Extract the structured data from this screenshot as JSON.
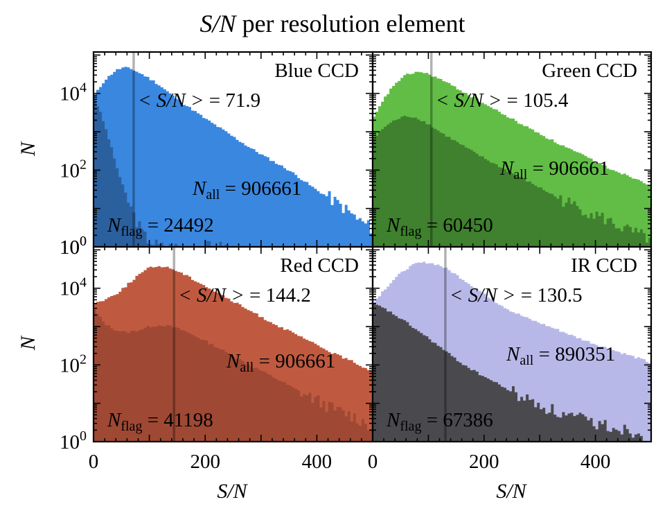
{
  "figure": {
    "title_italic": "S/N",
    "title_rest": " per resolution element",
    "ylabel": "N",
    "xlabel": "S/N"
  },
  "chart_data": {
    "type": "bar",
    "x_range": [
      0,
      500
    ],
    "y_scale": "log",
    "y_range": [
      1,
      120000
    ],
    "x_ticks": [
      "0",
      "200",
      "400"
    ],
    "y_ticks": [
      "10^0",
      "10^2",
      "10^4"
    ],
    "grid": false,
    "bin_width": 5,
    "panels": [
      {
        "name": "Blue CCD",
        "ccd_label": "Blue CCD",
        "color_all": "#3a87e0",
        "color_flag": "#2a5c99",
        "mean_label": "<S/N> = 71.9",
        "mean_value": 71.9,
        "nall_label": "N_all = 906661",
        "n_all": 906661,
        "nflag_label": "N_flag = 24492",
        "n_flag": 24492,
        "x_all": [
          0,
          20,
          40,
          55,
          70,
          90,
          110,
          130,
          150,
          175,
          200,
          225,
          250,
          275,
          300,
          325,
          350,
          375,
          400,
          425,
          450,
          475,
          500
        ],
        "y_all": [
          8000,
          22000,
          40000,
          48000,
          42000,
          30000,
          20000,
          12000,
          7000,
          4000,
          2200,
          1300,
          750,
          430,
          260,
          160,
          100,
          55,
          30,
          18,
          10,
          5,
          3
        ],
        "x_flag": [
          0,
          10,
          20,
          30,
          40,
          50,
          60,
          70,
          80,
          90,
          100,
          120,
          140,
          160,
          180,
          200,
          220,
          240
        ],
        "y_flag": [
          8000,
          4000,
          1500,
          500,
          150,
          50,
          20,
          8,
          4,
          2,
          1.5,
          1,
          1,
          1,
          1,
          1,
          1,
          1
        ]
      },
      {
        "name": "Green CCD",
        "ccd_label": "Green CCD",
        "color_all": "#62bd46",
        "color_flag": "#3c7c2d",
        "mean_label": "<S/N> = 105.4",
        "mean_value": 105.4,
        "nall_label": "N_all = 906661",
        "n_all": 906661,
        "nflag_label": "N_flag = 60450",
        "n_flag": 60450,
        "x_all": [
          0,
          20,
          40,
          60,
          80,
          100,
          120,
          150,
          180,
          210,
          240,
          270,
          300,
          330,
          360,
          390,
          420,
          450,
          480,
          500
        ],
        "y_all": [
          2000,
          7000,
          18000,
          30000,
          37000,
          32000,
          24000,
          14000,
          8000,
          4500,
          2600,
          1500,
          900,
          520,
          320,
          200,
          120,
          80,
          55,
          40
        ],
        "x_flag": [
          0,
          20,
          40,
          60,
          80,
          100,
          120,
          150,
          180,
          210,
          240,
          270,
          300,
          330,
          360,
          390,
          420,
          450,
          480,
          500
        ],
        "y_flag": [
          600,
          1300,
          2000,
          2600,
          2300,
          1600,
          1000,
          550,
          300,
          170,
          100,
          60,
          35,
          20,
          12,
          8,
          5,
          3,
          2,
          1.5
        ]
      },
      {
        "name": "Red CCD",
        "ccd_label": "Red CCD",
        "color_all": "#bf5a40",
        "color_flag": "#9c4633",
        "mean_label": "<S/N> = 144.2",
        "mean_value": 144.2,
        "nall_label": "N_all = 906661",
        "n_all": 906661,
        "nflag_label": "N_flag = 41198",
        "n_flag": 41198,
        "x_all": [
          0,
          20,
          40,
          60,
          80,
          100,
          120,
          140,
          160,
          190,
          220,
          250,
          280,
          310,
          340,
          370,
          400,
          430,
          460,
          490,
          500
        ],
        "y_all": [
          4000,
          5000,
          7000,
          12000,
          22000,
          34000,
          38000,
          33000,
          24000,
          14000,
          8000,
          4500,
          2600,
          1500,
          900,
          550,
          330,
          200,
          130,
          80,
          70
        ],
        "x_flag": [
          0,
          20,
          40,
          60,
          80,
          100,
          120,
          140,
          160,
          190,
          220,
          250,
          280,
          310,
          340,
          370,
          400,
          430,
          460,
          490,
          500
        ],
        "y_flag": [
          3000,
          1200,
          800,
          700,
          800,
          1000,
          1100,
          1000,
          800,
          500,
          300,
          170,
          100,
          60,
          35,
          20,
          12,
          7,
          5,
          3,
          2
        ]
      },
      {
        "name": "IR CCD",
        "ccd_label": "IR CCD",
        "color_all": "#b8b8e8",
        "color_flag": "#404040",
        "mean_label": "<S/N> = 130.5",
        "mean_value": 130.5,
        "nall_label": "N_all = 890351",
        "n_all": 890351,
        "nflag_label": "N_flag = 67386",
        "n_flag": 67386,
        "x_all": [
          0,
          20,
          40,
          60,
          80,
          100,
          120,
          140,
          160,
          190,
          220,
          250,
          280,
          310,
          340,
          370,
          400,
          430,
          460,
          490,
          500
        ],
        "y_all": [
          4000,
          9000,
          18000,
          32000,
          45000,
          47000,
          40000,
          28000,
          18000,
          9000,
          4500,
          2500,
          1600,
          1100,
          750,
          500,
          350,
          250,
          180,
          130,
          110
        ],
        "x_flag": [
          0,
          20,
          40,
          60,
          80,
          100,
          120,
          140,
          160,
          190,
          220,
          250,
          280,
          310,
          340,
          370,
          400,
          430,
          460,
          490,
          500
        ],
        "y_flag": [
          4000,
          3000,
          2000,
          1300,
          800,
          500,
          300,
          180,
          110,
          60,
          35,
          20,
          12,
          8,
          5,
          4,
          3,
          2.5,
          2,
          1.5,
          1.2
        ]
      }
    ]
  }
}
